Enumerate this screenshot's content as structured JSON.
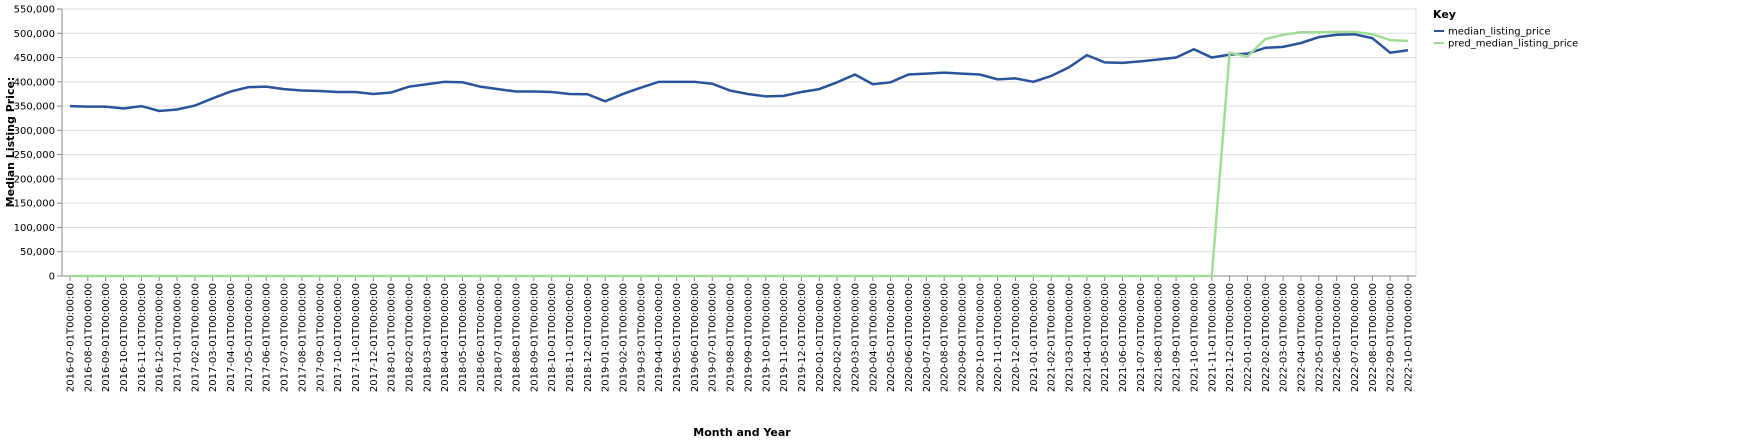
{
  "chart_data": {
    "type": "line",
    "x_label": "Month and Year",
    "y_label": "Median Listing Price:",
    "legend_title": "Key",
    "categories": [
      "2016-07-01T00:00:00",
      "2016-08-01T00:00:00",
      "2016-09-01T00:00:00",
      "2016-10-01T00:00:00",
      "2016-11-01T00:00:00",
      "2016-12-01T00:00:00",
      "2017-01-01T00:00:00",
      "2017-02-01T00:00:00",
      "2017-03-01T00:00:00",
      "2017-04-01T00:00:00",
      "2017-05-01T00:00:00",
      "2017-06-01T00:00:00",
      "2017-07-01T00:00:00",
      "2017-08-01T00:00:00",
      "2017-09-01T00:00:00",
      "2017-10-01T00:00:00",
      "2017-11-01T00:00:00",
      "2017-12-01T00:00:00",
      "2018-01-01T00:00:00",
      "2018-02-01T00:00:00",
      "2018-03-01T00:00:00",
      "2018-04-01T00:00:00",
      "2018-05-01T00:00:00",
      "2018-06-01T00:00:00",
      "2018-07-01T00:00:00",
      "2018-08-01T00:00:00",
      "2018-09-01T00:00:00",
      "2018-10-01T00:00:00",
      "2018-11-01T00:00:00",
      "2018-12-01T00:00:00",
      "2019-01-01T00:00:00",
      "2019-02-01T00:00:00",
      "2019-03-01T00:00:00",
      "2019-04-01T00:00:00",
      "2019-05-01T00:00:00",
      "2019-06-01T00:00:00",
      "2019-07-01T00:00:00",
      "2019-08-01T00:00:00",
      "2019-09-01T00:00:00",
      "2019-10-01T00:00:00",
      "2019-11-01T00:00:00",
      "2019-12-01T00:00:00",
      "2020-01-01T00:00:00",
      "2020-02-01T00:00:00",
      "2020-03-01T00:00:00",
      "2020-04-01T00:00:00",
      "2020-05-01T00:00:00",
      "2020-06-01T00:00:00",
      "2020-07-01T00:00:00",
      "2020-08-01T00:00:00",
      "2020-09-01T00:00:00",
      "2020-10-01T00:00:00",
      "2020-11-01T00:00:00",
      "2020-12-01T00:00:00",
      "2021-01-01T00:00:00",
      "2021-02-01T00:00:00",
      "2021-03-01T00:00:00",
      "2021-04-01T00:00:00",
      "2021-05-01T00:00:00",
      "2021-06-01T00:00:00",
      "2021-07-01T00:00:00",
      "2021-08-01T00:00:00",
      "2021-09-01T00:00:00",
      "2021-10-01T00:00:00",
      "2021-11-01T00:00:00",
      "2021-12-01T00:00:00",
      "2022-01-01T00:00:00",
      "2022-02-01T00:00:00",
      "2022-03-01T00:00:00",
      "2022-04-01T00:00:00",
      "2022-05-01T00:00:00",
      "2022-06-01T00:00:00",
      "2022-07-01T00:00:00",
      "2022-08-01T00:00:00",
      "2022-09-01T00:00:00",
      "2022-10-01T00:00:00"
    ],
    "series": [
      {
        "name": "median_listing_price",
        "color": "#2b539a",
        "values": [
          350000,
          349000,
          349000,
          345000,
          350000,
          340000,
          343000,
          351000,
          366000,
          380000,
          389000,
          390000,
          385000,
          382000,
          381000,
          379000,
          379000,
          375000,
          378000,
          390000,
          395000,
          400000,
          399000,
          390000,
          385000,
          380000,
          380000,
          379000,
          375000,
          374500,
          360000,
          375000,
          388000,
          400000,
          400000,
          400000,
          396000,
          382000,
          375000,
          370000,
          371000,
          379000,
          385000,
          399000,
          415000,
          395000,
          399000,
          415000,
          417000,
          419000,
          417000,
          415000,
          405000,
          407000,
          400000,
          412000,
          430000,
          455000,
          440000,
          439000,
          442000,
          446000,
          450000,
          467000,
          450000,
          456000,
          458000,
          470000,
          472000,
          480000,
          492000,
          497000,
          498000,
          490000,
          460000,
          465000
        ]
      },
      {
        "name": "pred_median_listing_price",
        "color": "#a1dd97",
        "values": [
          0,
          0,
          0,
          0,
          0,
          0,
          0,
          0,
          0,
          0,
          0,
          0,
          0,
          0,
          0,
          0,
          0,
          0,
          0,
          0,
          0,
          0,
          0,
          0,
          0,
          0,
          0,
          0,
          0,
          0,
          0,
          0,
          0,
          0,
          0,
          0,
          0,
          0,
          0,
          0,
          0,
          0,
          0,
          0,
          0,
          0,
          0,
          0,
          0,
          0,
          0,
          0,
          0,
          0,
          0,
          0,
          0,
          0,
          0,
          0,
          0,
          0,
          0,
          0,
          0,
          460000,
          452000,
          488000,
          497000,
          502000,
          502000,
          503000,
          503000,
          498000,
          486000,
          484000
        ]
      }
    ],
    "ylim": [
      0,
      550000
    ],
    "yticks": [
      0,
      {
        "value": 50000,
        "label": "50,000"
      },
      {
        "value": 100000,
        "label": "100,000"
      },
      {
        "value": 150000,
        "label": "150,000"
      },
      {
        "value": 200000,
        "label": "200,000"
      },
      {
        "value": 250000,
        "label": "250,000"
      },
      {
        "value": 300000,
        "label": "300,000"
      },
      {
        "value": 350000,
        "label": "350,000"
      },
      {
        "value": 400000,
        "label": "400,000"
      },
      {
        "value": 450000,
        "label": "450,000"
      },
      {
        "value": 500000,
        "label": "500,000"
      },
      {
        "value": 550000,
        "label": "550,000"
      }
    ],
    "grid": true
  }
}
